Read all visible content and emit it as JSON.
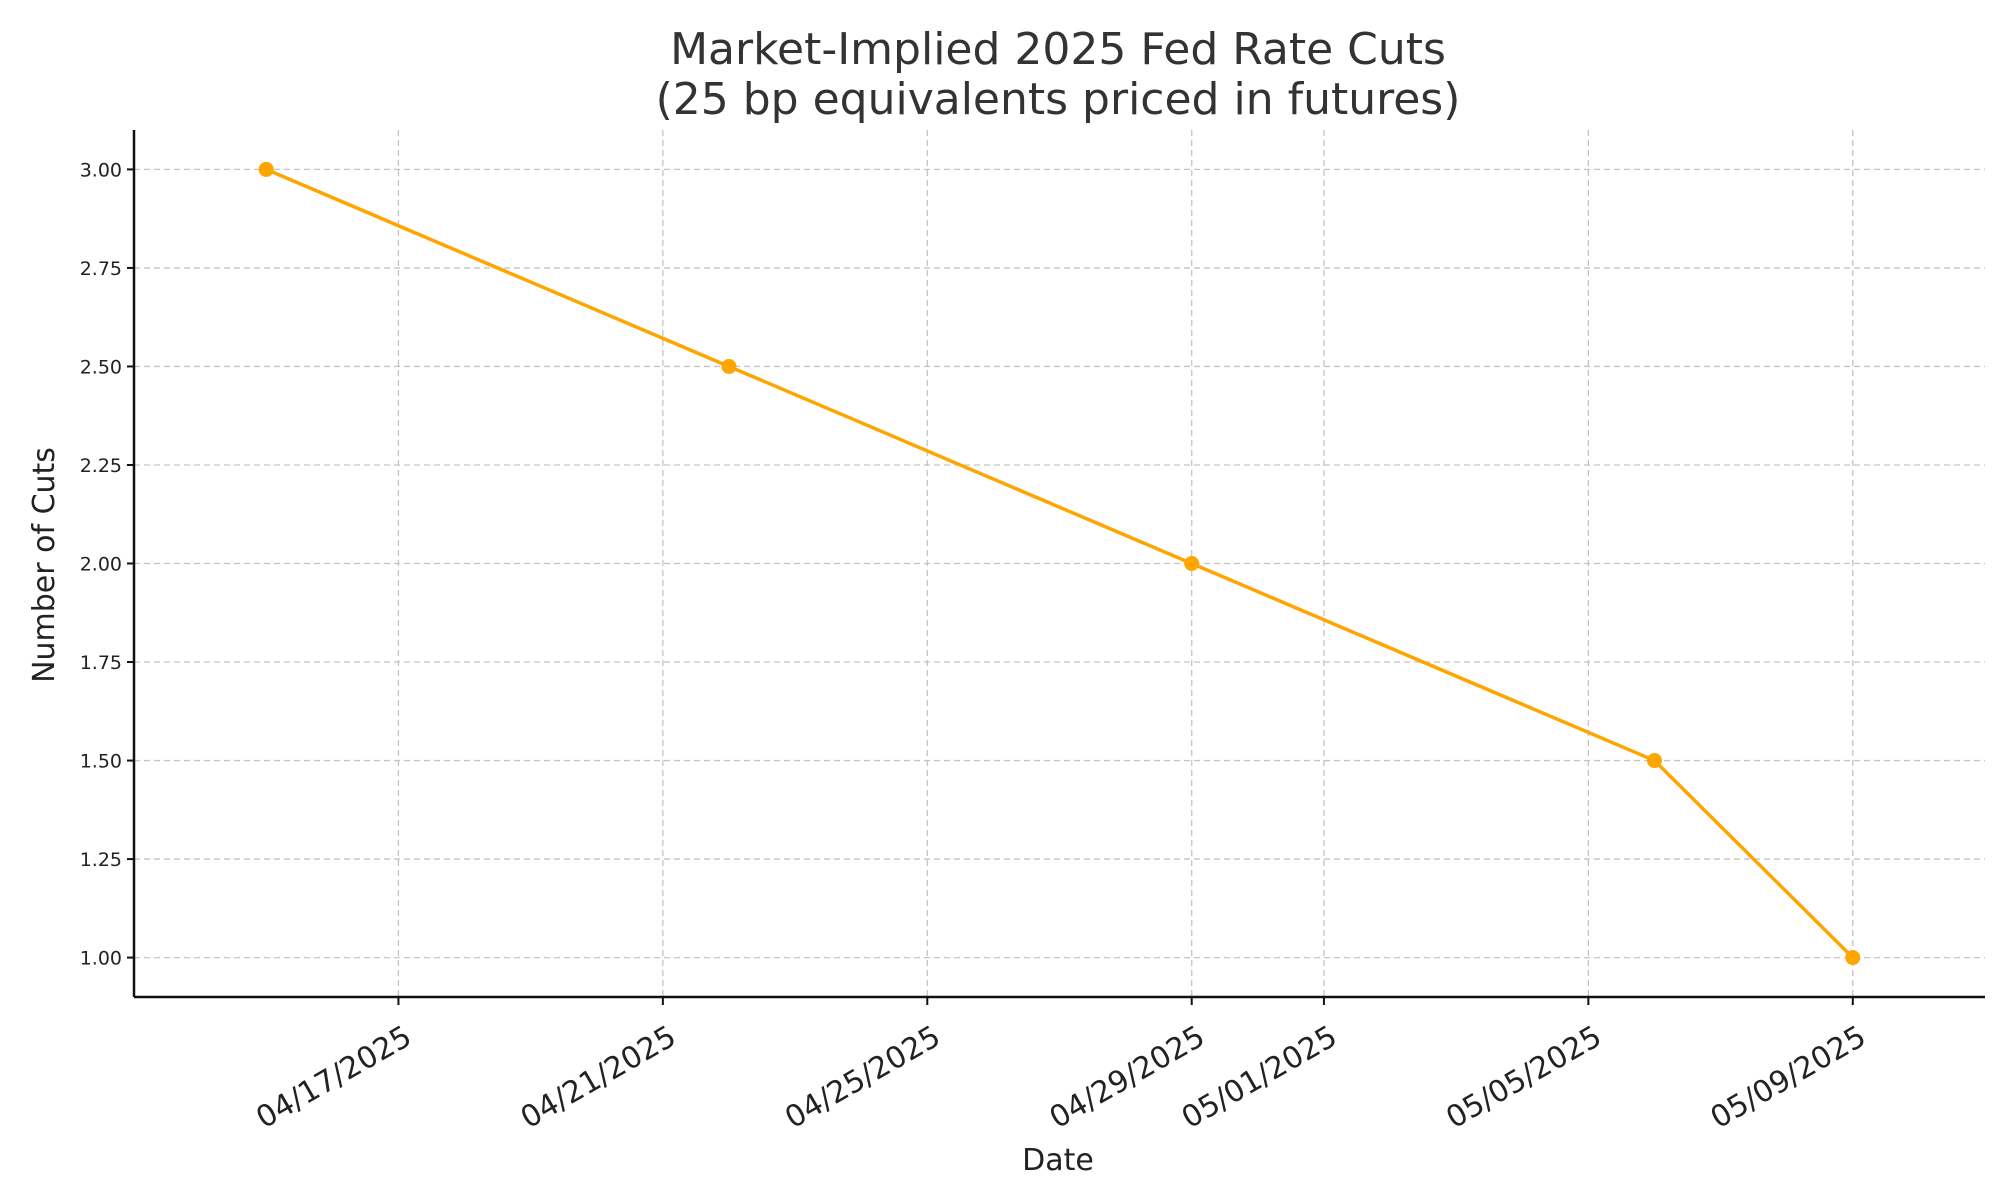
{
  "chart_data": {
    "type": "line",
    "title_line1": "Market-Implied 2025 Fed Rate Cuts",
    "title_line2": "(25 bp equivalents priced in futures)",
    "xlabel": "Date",
    "ylabel": "Number of Cuts",
    "color": "#FFA500",
    "grid": true,
    "x_tick_labels": [
      "04/17/2025",
      "04/21/2025",
      "04/25/2025",
      "04/29/2025",
      "05/01/2025",
      "05/05/2025",
      "05/09/2025"
    ],
    "y_tick_labels": [
      "1.00",
      "1.25",
      "1.50",
      "1.75",
      "2.00",
      "2.25",
      "2.50",
      "2.75",
      "3.00"
    ],
    "ylim": [
      0.9,
      3.1
    ],
    "xlim": [
      "2025-04-13",
      "2025-05-11"
    ],
    "points": [
      {
        "x": "2025-04-15",
        "y": 3.0
      },
      {
        "x": "2025-04-22",
        "y": 2.5
      },
      {
        "x": "2025-04-29",
        "y": 2.0
      },
      {
        "x": "2025-05-06",
        "y": 1.5
      },
      {
        "x": "2025-05-09",
        "y": 1.0
      }
    ]
  }
}
